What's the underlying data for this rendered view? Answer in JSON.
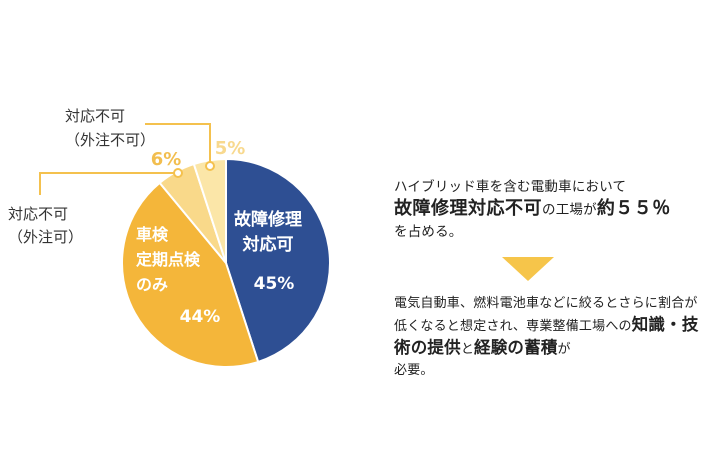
{
  "chart_data": {
    "type": "pie",
    "slices": [
      {
        "label_lines": [
          "故障修理",
          "対応可"
        ],
        "value": 45,
        "value_text": "45%",
        "color": "#2e4f93"
      },
      {
        "label_lines": [
          "車検",
          "定期点検",
          "のみ"
        ],
        "value": 44,
        "value_text": "44%",
        "color": "#f4b63a"
      },
      {
        "label_lines": [],
        "value": 6,
        "value_text": "6%",
        "color": "#f9d98a"
      },
      {
        "label_lines": [],
        "value": 5,
        "value_text": "5%",
        "color": "#fbe6a8"
      }
    ],
    "callouts": [
      {
        "lines": [
          "対応不可",
          "（外注可）"
        ],
        "slice": 2
      },
      {
        "lines": [
          "対応不可",
          "（外注不可）"
        ],
        "slice": 3
      }
    ],
    "accent_color": "#f4c14e",
    "outer_label_colors": [
      "#f2be4f",
      "#f8d98e"
    ]
  },
  "panel": {
    "line1": "ハイブリッド車を含む電動車において",
    "line2_bold": "故障修理対応不可",
    "line2_mid": "の工場が",
    "line2_bold2": "約５５％",
    "line3": "を占める。",
    "para2_a": "電気自動車、燃料電池車などに絞るとさらに割合が低くなると想定され、専業整備工場への",
    "para2_bold1": "知識・技術の提供",
    "para2_mid": "と",
    "para2_bold2": "経験の蓄積",
    "para2_b": "が",
    "para2_c": "必要。"
  }
}
